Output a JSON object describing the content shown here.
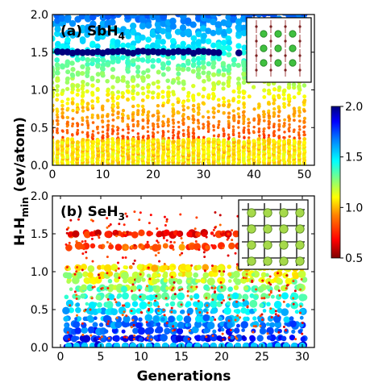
{
  "chart_data": [
    {
      "type": "scatter",
      "panel_label": "(a)",
      "compound": "SbH",
      "compound_subscript": "4",
      "xlim": [
        0,
        52
      ],
      "ylim": [
        0,
        2.0
      ],
      "xticks": [
        0,
        10,
        20,
        30,
        40,
        50
      ],
      "yticks": [
        "0.0",
        "0.5",
        "1.0",
        "1.5",
        "2.0"
      ],
      "n_generations": 50,
      "upper_band": {
        "y": 1.5,
        "x_range": [
          1,
          33
        ],
        "extra_x": [
          37
        ],
        "color_value": 2.0
      }
    },
    {
      "type": "scatter",
      "panel_label": "(b)",
      "compound": "SeH",
      "compound_subscript": "3",
      "xlim": [
        -1,
        31.5
      ],
      "ylim": [
        0,
        2.0
      ],
      "xticks": [
        0,
        5,
        10,
        15,
        20,
        25,
        30
      ],
      "yticks": [
        "0.0",
        "0.5",
        "1.0",
        "1.5",
        "2.0"
      ],
      "n_generations": 30,
      "discrete_levels": [
        0.02,
        0.12,
        0.22,
        0.3,
        0.38,
        0.48,
        0.57,
        0.67,
        0.78,
        0.88,
        0.96,
        1.05,
        1.33,
        1.5
      ]
    }
  ],
  "axes": {
    "ylabel_main": "H-H",
    "ylabel_sub": "min",
    "ylabel_unit": " (ev/atom)",
    "xlabel": "Generations"
  },
  "colorbar": {
    "ticks": [
      "2.0",
      "1.5",
      "1.0",
      "0.5"
    ],
    "range": [
      0.5,
      2.0
    ],
    "colors": [
      "#7f0000",
      "#ff0000",
      "#ff8000",
      "#ffff00",
      "#80ff80",
      "#00ffff",
      "#0080ff",
      "#0000ff",
      "#00007f"
    ]
  }
}
